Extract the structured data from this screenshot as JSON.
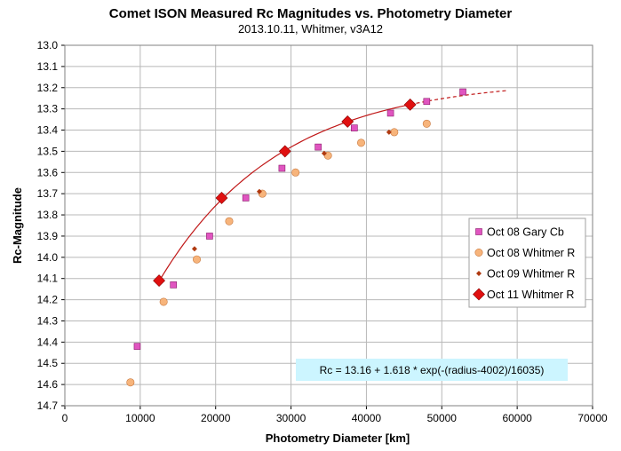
{
  "chart_data": {
    "type": "scatter",
    "title": "Comet ISON Measured Rc Magnitudes vs. Photometry Diameter",
    "subtitle": "2013.10.11,  Whitmer, v3A12",
    "xlabel": "Photometry Diameter  [km]",
    "ylabel": "Rc-Magnitude",
    "xlim": [
      0,
      70000
    ],
    "ylim": [
      13.0,
      14.7
    ],
    "y_reversed": true,
    "xticks": [
      0,
      10000,
      20000,
      30000,
      40000,
      50000,
      60000,
      70000
    ],
    "yticks": [
      "13.0",
      "13.1",
      "13.2",
      "13.3",
      "13.4",
      "13.5",
      "13.6",
      "13.7",
      "13.8",
      "13.9",
      "14.0",
      "14.1",
      "14.2",
      "14.3",
      "14.4",
      "14.5",
      "14.6",
      "14.7"
    ],
    "grid": "major, both axes",
    "legend_position": "right",
    "series": [
      {
        "name": "Oct 08 Gary Cb",
        "marker": "square",
        "color": "#e055c0",
        "x": [
          9600,
          14400,
          19200,
          24000,
          28800,
          33600,
          38400,
          43200,
          48000,
          52800
        ],
        "y": [
          14.42,
          14.13,
          13.9,
          13.72,
          13.58,
          13.48,
          13.39,
          13.32,
          13.265,
          13.22
        ]
      },
      {
        "name": "Oct 08 Whitmer R",
        "marker": "circle",
        "color": "#f7b47b",
        "x": [
          8700,
          13100,
          17500,
          21800,
          26200,
          30600,
          34900,
          39300,
          43700,
          48000
        ],
        "y": [
          14.59,
          14.21,
          14.01,
          13.83,
          13.7,
          13.6,
          13.52,
          13.46,
          13.41,
          13.37
        ]
      },
      {
        "name": "Oct 09 Whitmer R",
        "marker": "small-diamond",
        "color": "#b03a10",
        "x": [
          17200,
          25800,
          34400,
          43000
        ],
        "y": [
          13.96,
          13.69,
          13.51,
          13.41
        ]
      },
      {
        "name": "Oct 11 Whitmer R",
        "marker": "diamond",
        "color": "#e01010",
        "x": [
          12500,
          20800,
          29200,
          37500,
          45800
        ],
        "y": [
          14.11,
          13.72,
          13.5,
          13.36,
          13.28
        ]
      }
    ],
    "fit": {
      "label": "Rc = 13.16 + 1.618 * exp(-(radius-4002)/16035)",
      "a": 13.16,
      "b": 1.618,
      "x0": 4002,
      "scale": 16035,
      "x_solid": [
        12500,
        45800
      ],
      "x_dashed": [
        45800,
        58500
      ],
      "color": "#c01818"
    },
    "annotation_bg": "#ccf5ff"
  }
}
